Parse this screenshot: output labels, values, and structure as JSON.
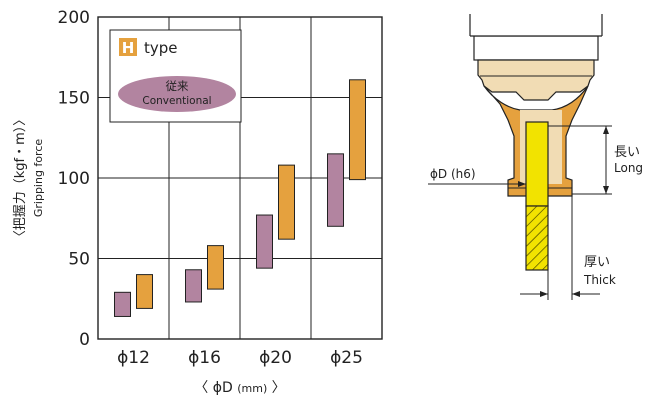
{
  "chart_data": {
    "type": "bar",
    "subtype": "floating-range",
    "categories": [
      "ϕ12",
      "ϕ16",
      "ϕ20",
      "ϕ25"
    ],
    "series": [
      {
        "name": "従来 Conventional",
        "color": "#b284a0",
        "ranges": [
          [
            14,
            29
          ],
          [
            23,
            43
          ],
          [
            44,
            77
          ],
          [
            70,
            115
          ]
        ]
      },
      {
        "name": "H type",
        "color": "#e5a13e",
        "ranges": [
          [
            19,
            40
          ],
          [
            31,
            58
          ],
          [
            62,
            108
          ],
          [
            99,
            161
          ]
        ]
      }
    ],
    "ylabel_jp": "〈把握力（kgf・m）〉",
    "ylabel_en": "Gripping force",
    "xlabel_prefix": "〈 ϕD ",
    "xlabel_unit": "(mm)",
    "xlabel_suffix": " 〉",
    "ylim": [
      0,
      200
    ],
    "yticks": [
      0,
      50,
      100,
      150,
      200
    ],
    "grid": true,
    "legend": {
      "placement": "top-left",
      "h_badge": "H",
      "h_text": "type",
      "conv_jp": "従来",
      "conv_en": "Conventional"
    }
  },
  "diagram": {
    "phi_label": "ϕD (h6)",
    "long_jp": "長い",
    "long_en": "Long",
    "thick_jp": "厚い",
    "thick_en": "Thick"
  }
}
